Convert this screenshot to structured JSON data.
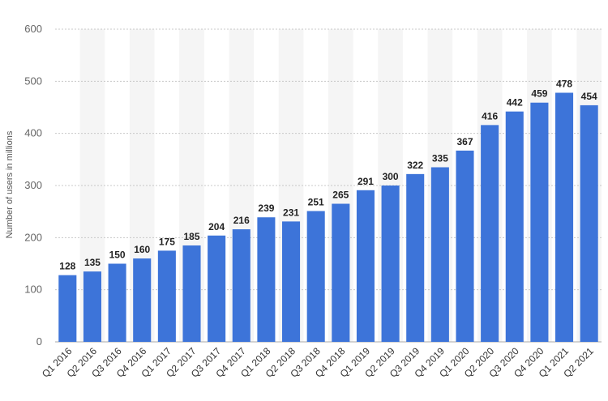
{
  "chart_data": {
    "type": "bar",
    "categories": [
      "Q1 2016",
      "Q2 2016",
      "Q3 2016",
      "Q4 2016",
      "Q1 2017",
      "Q2 2017",
      "Q3 2017",
      "Q4 2017",
      "Q1 2018",
      "Q2 2018",
      "Q3 2018",
      "Q4 2018",
      "Q1 2019",
      "Q2 2019",
      "Q3 2019",
      "Q4 2019",
      "Q1 2020",
      "Q2 2020",
      "Q3 2020",
      "Q4 2020",
      "Q1 2021",
      "Q2 2021"
    ],
    "values": [
      128,
      135,
      150,
      160,
      175,
      185,
      204,
      216,
      239,
      231,
      251,
      265,
      291,
      300,
      322,
      335,
      367,
      416,
      442,
      459,
      478,
      454
    ],
    "ylabel": "Number of users in millions",
    "ylim": [
      0,
      600
    ],
    "yticks": [
      0,
      100,
      200,
      300,
      400,
      500,
      600
    ],
    "grid": true,
    "bar_color": "#3d74d9",
    "alt_band_color": "#f5f5f5"
  }
}
